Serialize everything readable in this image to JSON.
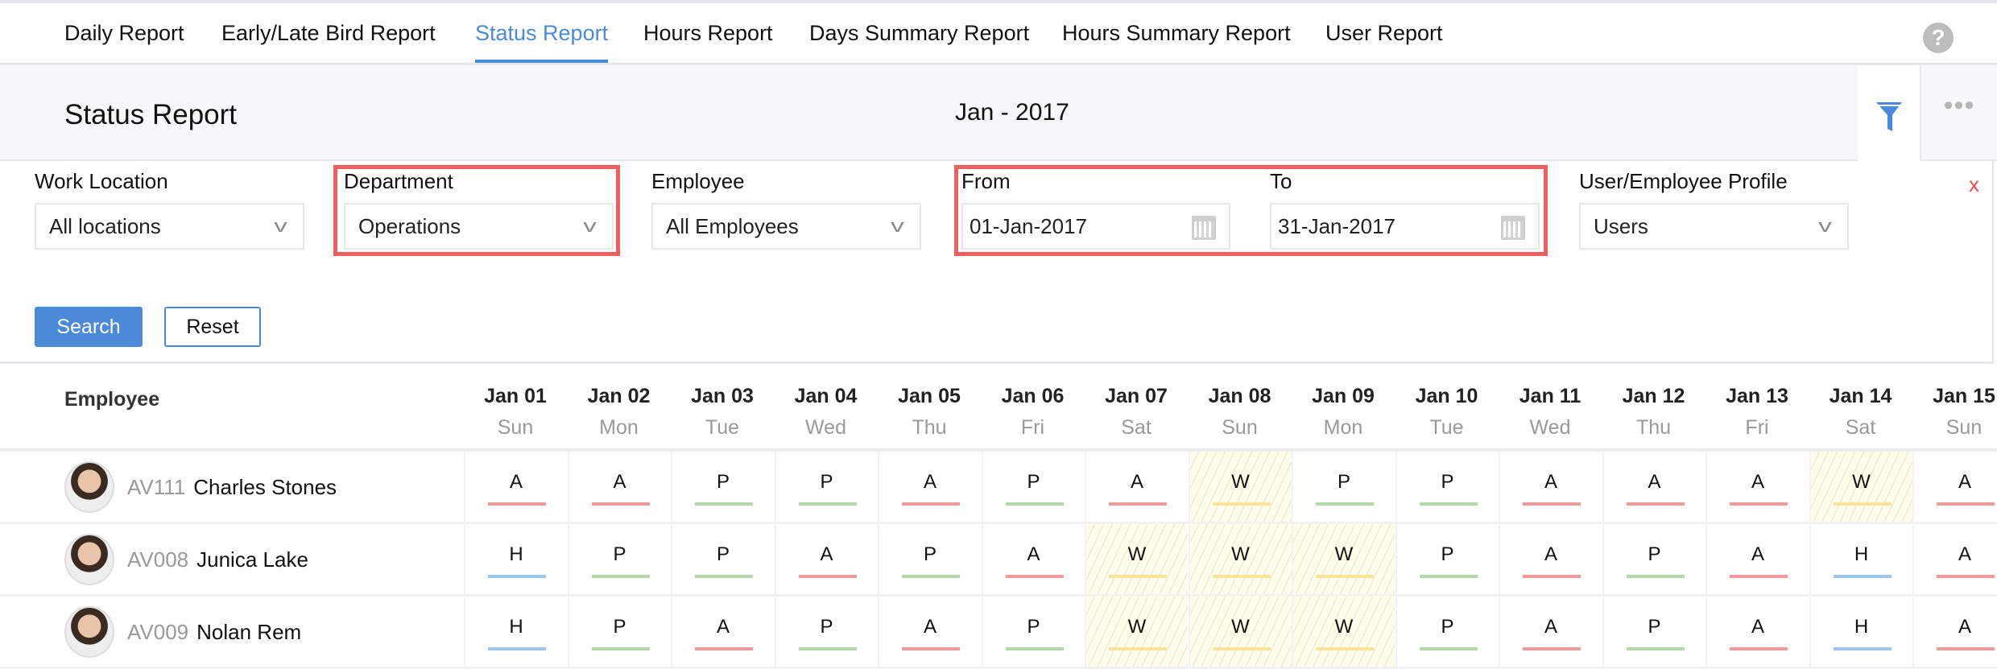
{
  "tabs": [
    {
      "label": "Daily Report"
    },
    {
      "label": "Early/Late Bird Report"
    },
    {
      "label": "Status Report",
      "active": true
    },
    {
      "label": "Hours Report"
    },
    {
      "label": "Days Summary Report"
    },
    {
      "label": "Hours Summary Report"
    },
    {
      "label": "User Report"
    }
  ],
  "help": "?",
  "header": {
    "title": "Status Report",
    "month": "Jan - 2017",
    "more": "•••"
  },
  "filters": {
    "work_location": {
      "label": "Work Location",
      "value": "All locations"
    },
    "department": {
      "label": "Department",
      "value": "Operations"
    },
    "employee": {
      "label": "Employee",
      "value": "All Employees"
    },
    "from": {
      "label": "From",
      "value": "01-Jan-2017"
    },
    "to": {
      "label": "To",
      "value": "31-Jan-2017"
    },
    "profile": {
      "label": "User/Employee Profile",
      "value": "Users"
    },
    "close": "x",
    "search": "Search",
    "reset": "Reset"
  },
  "table": {
    "employee_header": "Employee",
    "dates": [
      [
        "Jan 01",
        "Sun"
      ],
      [
        "Jan 02",
        "Mon"
      ],
      [
        "Jan 03",
        "Tue"
      ],
      [
        "Jan 04",
        "Wed"
      ],
      [
        "Jan 05",
        "Thu"
      ],
      [
        "Jan 06",
        "Fri"
      ],
      [
        "Jan 07",
        "Sat"
      ],
      [
        "Jan 08",
        "Sun"
      ],
      [
        "Jan 09",
        "Mon"
      ],
      [
        "Jan 10",
        "Tue"
      ],
      [
        "Jan 11",
        "Wed"
      ],
      [
        "Jan 12",
        "Thu"
      ],
      [
        "Jan 13",
        "Fri"
      ],
      [
        "Jan 14",
        "Sat"
      ],
      [
        "Jan 15",
        "Sun"
      ]
    ],
    "rows": [
      {
        "id": "AV111",
        "name": "Charles Stones",
        "status": [
          "A",
          "A",
          "P",
          "P",
          "A",
          "P",
          "A",
          "W",
          "P",
          "P",
          "A",
          "A",
          "A",
          "W",
          "A"
        ]
      },
      {
        "id": "AV008",
        "name": "Junica Lake",
        "status": [
          "H",
          "P",
          "P",
          "A",
          "P",
          "A",
          "W",
          "W",
          "W",
          "P",
          "A",
          "P",
          "A",
          "H",
          "A"
        ]
      },
      {
        "id": "AV009",
        "name": "Nolan Rem",
        "status": [
          "H",
          "P",
          "A",
          "P",
          "A",
          "P",
          "W",
          "W",
          "W",
          "P",
          "A",
          "P",
          "A",
          "H",
          "A"
        ]
      }
    ]
  },
  "colors": {
    "A": "#f09a9a",
    "P": "#b3d9a9",
    "H": "#9dc6e8",
    "W": "#fde39a",
    "accent": "#4a8ad8"
  }
}
